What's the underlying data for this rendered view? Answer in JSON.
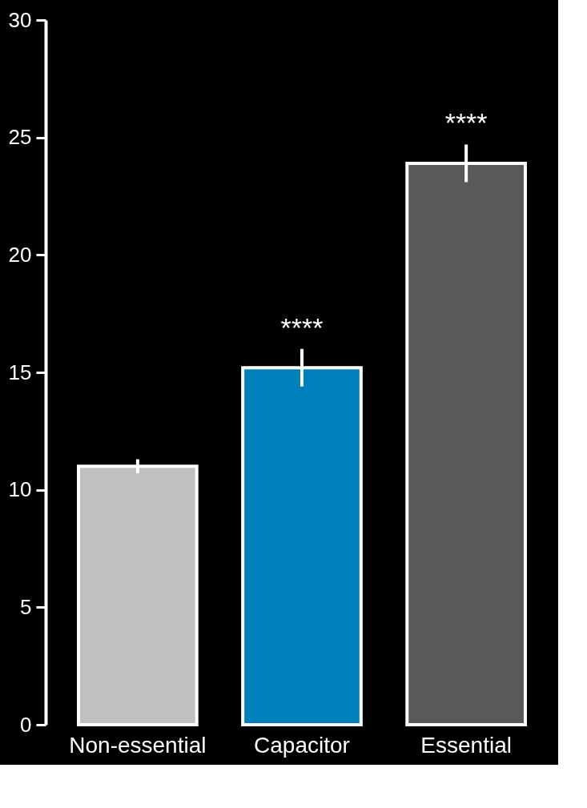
{
  "chart_data": {
    "type": "bar",
    "categories": [
      "Non-essential",
      "Capacitor",
      "Essential"
    ],
    "values": [
      11.0,
      15.2,
      23.9
    ],
    "colors": [
      "#c0c0c0",
      "#0080bb",
      "#595959"
    ],
    "errors": [
      0.3,
      0.8,
      0.8
    ],
    "ylim": [
      0,
      30
    ],
    "yticks": [
      0,
      5,
      10,
      15,
      20,
      25,
      30
    ],
    "grid": false,
    "annotations": [
      {
        "text": "****",
        "x": "Capacitor",
        "y": 15.2
      },
      {
        "text": "****",
        "x": "Essential",
        "y": 23.9
      }
    ]
  }
}
